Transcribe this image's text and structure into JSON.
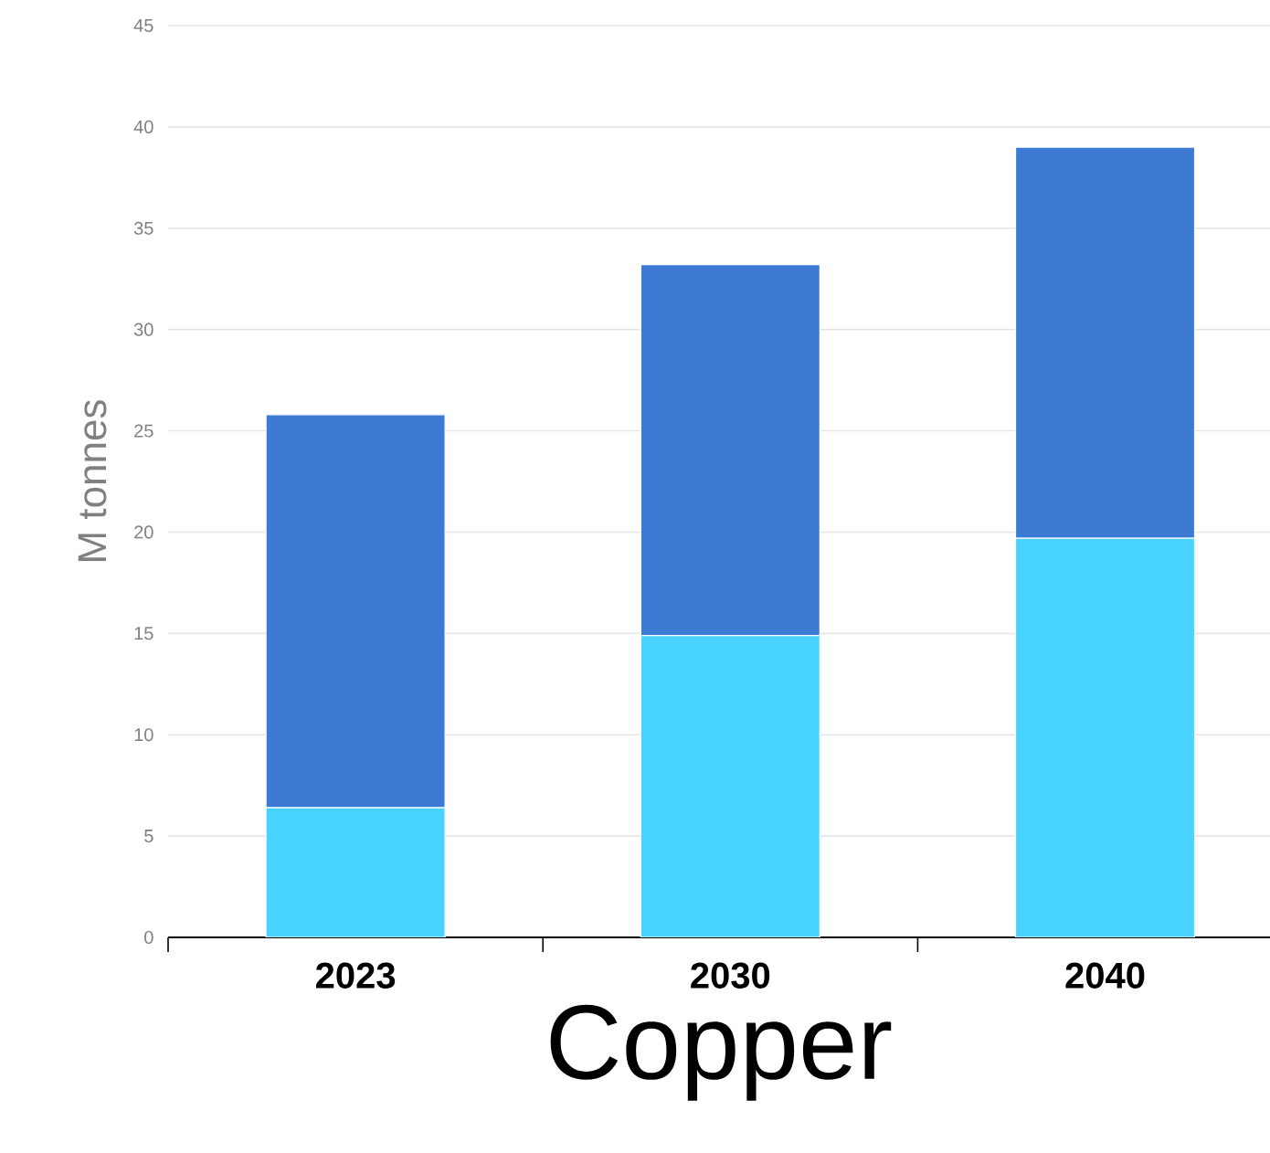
{
  "chart_data": {
    "type": "bar",
    "stacked": true,
    "xlabel": "Copper",
    "ylabel": "M tonnes",
    "categories": [
      "2023",
      "2030",
      "2040"
    ],
    "series": [
      {
        "color": "#48d3fe",
        "values": [
          6.4,
          14.9,
          19.7
        ]
      },
      {
        "color": "#3d7ad4",
        "values": [
          19.4,
          18.3,
          19.3
        ]
      }
    ],
    "ylim": [
      0,
      45
    ],
    "yticks": [
      0,
      5,
      10,
      15,
      20,
      25,
      30,
      35,
      40,
      45
    ],
    "grid": "y"
  }
}
